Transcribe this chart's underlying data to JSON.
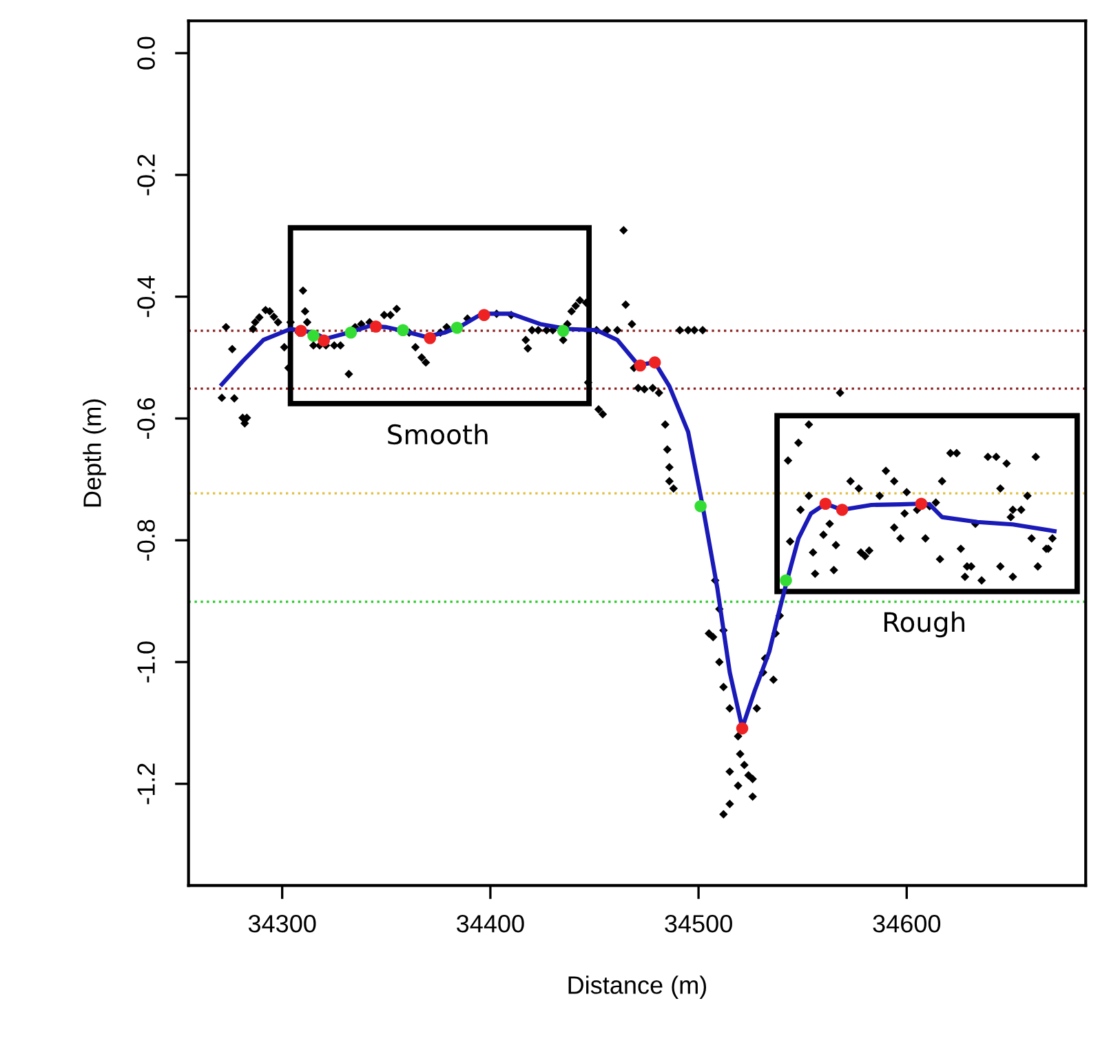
{
  "chart_data": {
    "type": "scatter",
    "xlabel": "Distance (m)",
    "ylabel": "Depth (m)",
    "xlim": [
      34255,
      34686
    ],
    "xticks": [
      34300,
      34400,
      34500,
      34600
    ],
    "ylim": [
      -1.367,
      0.053
    ],
    "yticks": [
      {
        "value": 0,
        "label": "0.0"
      },
      -0.2,
      -0.4,
      -0.6,
      -0.8,
      {
        "value": -1,
        "label": "-1.0"
      },
      -1.2
    ],
    "grid": false,
    "ref_lines": [
      {
        "axis": "y",
        "value": -0.456,
        "color": "#8b2020",
        "line_style": "dotted"
      },
      {
        "axis": "y",
        "value": -0.551,
        "color": "#8b2020",
        "line_style": "dotted"
      },
      {
        "axis": "y",
        "value": -0.723,
        "color": "#e0c040",
        "line_style": "dotted"
      },
      {
        "axis": "y",
        "value": -0.901,
        "color": "#33cc33",
        "line_style": "dotted"
      }
    ],
    "annotations": [
      "Smooth",
      "Rough"
    ],
    "series": [
      {
        "color": "#000000",
        "marker": "diamond",
        "x": [
          34273,
          34276,
          34271,
          34277,
          34281,
          34282,
          34283,
          34286,
          34287,
          34289,
          34292,
          34294,
          34296,
          34298,
          34301,
          34303,
          34304,
          34308,
          34310,
          34311,
          34312,
          34315,
          34318,
          34321,
          34325,
          34328,
          34332,
          34335,
          34338,
          34342,
          34349,
          34352,
          34355,
          34361,
          34364,
          34367,
          34369,
          34376,
          34379,
          34389,
          34403,
          34410,
          34417,
          34418,
          34420,
          34423,
          34427,
          34430,
          34435,
          34437,
          34439,
          34441,
          34443,
          34446,
          34447,
          34452,
          34454,
          34451,
          34456,
          34461,
          34464,
          34465,
          34468,
          34491,
          34495,
          34498,
          34502,
          34469,
          34471,
          34474,
          34478,
          34481,
          34484,
          34485,
          34486,
          34486,
          34488,
          34508,
          34510,
          34512,
          34505,
          34507,
          34510,
          34512,
          34515,
          34519,
          34520,
          34522,
          34519,
          34515,
          34512,
          34515,
          34524,
          34526,
          34526,
          34528,
          34531,
          34532,
          34536,
          34537,
          34539,
          34544,
          34543,
          34548,
          34553,
          34549,
          34553,
          34555,
          34556,
          34560,
          34563,
          34565,
          34566,
          34568,
          34573,
          34577,
          34578,
          34580,
          34582,
          34587,
          34590,
          34594,
          34594,
          34597,
          34599,
          34600,
          34605,
          34609,
          34611,
          34614,
          34616,
          34617,
          34621,
          34624,
          34626,
          34628,
          34629,
          34631,
          34633,
          34636,
          34639,
          34643,
          34645,
          34645,
          34648,
          34650,
          34651,
          34651,
          34655,
          34658,
          34660,
          34662,
          34663,
          34667,
          34668,
          34670
        ],
        "values": [
          -0.45,
          -0.486,
          -0.566,
          -0.567,
          -0.599,
          -0.608,
          -0.599,
          -0.453,
          -0.442,
          -0.434,
          -0.422,
          -0.424,
          -0.433,
          -0.442,
          -0.483,
          -0.517,
          -0.442,
          -0.459,
          -0.39,
          -0.424,
          -0.442,
          -0.48,
          -0.48,
          -0.48,
          -0.48,
          -0.48,
          -0.527,
          -0.45,
          -0.445,
          -0.442,
          -0.43,
          -0.43,
          -0.42,
          -0.459,
          -0.483,
          -0.5,
          -0.508,
          -0.459,
          -0.45,
          -0.436,
          -0.428,
          -0.43,
          -0.471,
          -0.485,
          -0.455,
          -0.455,
          -0.455,
          -0.455,
          -0.471,
          -0.445,
          -0.424,
          -0.415,
          -0.406,
          -0.41,
          -0.541,
          -0.585,
          -0.593,
          -0.455,
          -0.455,
          -0.455,
          -0.291,
          -0.413,
          -0.445,
          -0.455,
          -0.455,
          -0.455,
          -0.455,
          -0.517,
          -0.55,
          -0.552,
          -0.55,
          -0.558,
          -0.61,
          -0.651,
          -0.68,
          -0.703,
          -0.715,
          -0.866,
          -0.913,
          -0.948,
          -0.953,
          -0.959,
          -1.0,
          -1.041,
          -1.076,
          -1.122,
          -1.151,
          -1.169,
          -1.203,
          -1.233,
          -1.25,
          -1.18,
          -1.186,
          -1.192,
          -1.221,
          -1.076,
          -1.017,
          -0.994,
          -1.029,
          -0.953,
          -0.924,
          -0.802,
          -0.669,
          -0.64,
          -0.61,
          -0.75,
          -0.727,
          -0.82,
          -0.855,
          -0.791,
          -0.773,
          -0.849,
          -0.808,
          -0.558,
          -0.703,
          -0.715,
          -0.82,
          -0.826,
          -0.817,
          -0.727,
          -0.686,
          -0.703,
          -0.779,
          -0.797,
          -0.756,
          -0.721,
          -0.75,
          -0.797,
          -0.744,
          -0.738,
          -0.831,
          -0.703,
          -0.657,
          -0.657,
          -0.814,
          -0.86,
          -0.843,
          -0.843,
          -0.773,
          -0.866,
          -0.663,
          -0.663,
          -0.715,
          -0.843,
          -0.674,
          -0.762,
          -0.75,
          -0.86,
          -0.75,
          -0.727,
          -0.797,
          -0.663,
          -0.843,
          -0.814,
          -0.814,
          -0.797
        ]
      },
      {
        "type": "line",
        "color": "#1a1ab8",
        "line_style": "solid",
        "x": [
          34271,
          34281,
          34291,
          34304,
          34315,
          34321,
          34332,
          34342,
          34350,
          34359,
          34369,
          34378,
          34386,
          34396,
          34410,
          34424,
          34437,
          34451,
          34461,
          34471,
          34479,
          34486,
          34495,
          34502,
          34509,
          34515,
          34521,
          34527,
          34534,
          34539,
          34543,
          34548,
          34554,
          34561,
          34569,
          34583,
          34597,
          34606,
          34611,
          34617,
          34634,
          34651,
          34671
        ],
        "values": [
          -0.544,
          -0.506,
          -0.471,
          -0.453,
          -0.459,
          -0.469,
          -0.459,
          -0.448,
          -0.45,
          -0.457,
          -0.466,
          -0.459,
          -0.448,
          -0.428,
          -0.428,
          -0.445,
          -0.453,
          -0.455,
          -0.471,
          -0.512,
          -0.508,
          -0.547,
          -0.622,
          -0.744,
          -0.878,
          -1.017,
          -1.108,
          -1.047,
          -0.983,
          -0.913,
          -0.86,
          -0.797,
          -0.756,
          -0.74,
          -0.75,
          -0.742,
          -0.741,
          -0.74,
          -0.741,
          -0.762,
          -0.77,
          -0.774,
          -0.785
        ]
      },
      {
        "color": "#ee2222",
        "marker": "circle",
        "x": [
          34309,
          34320,
          34345,
          34371,
          34397,
          34472,
          34479,
          34521,
          34561,
          34569,
          34607
        ],
        "values": [
          -0.456,
          -0.472,
          -0.449,
          -0.468,
          -0.43,
          -0.513,
          -0.508,
          -1.109,
          -0.74,
          -0.75,
          -0.74
        ]
      },
      {
        "color": "#33dd33",
        "marker": "circle",
        "x": [
          34315,
          34333,
          34358,
          34384,
          34435,
          34501,
          34542
        ],
        "values": [
          -0.464,
          -0.459,
          -0.455,
          -0.451,
          -0.456,
          -0.744,
          -0.866
        ]
      }
    ]
  }
}
